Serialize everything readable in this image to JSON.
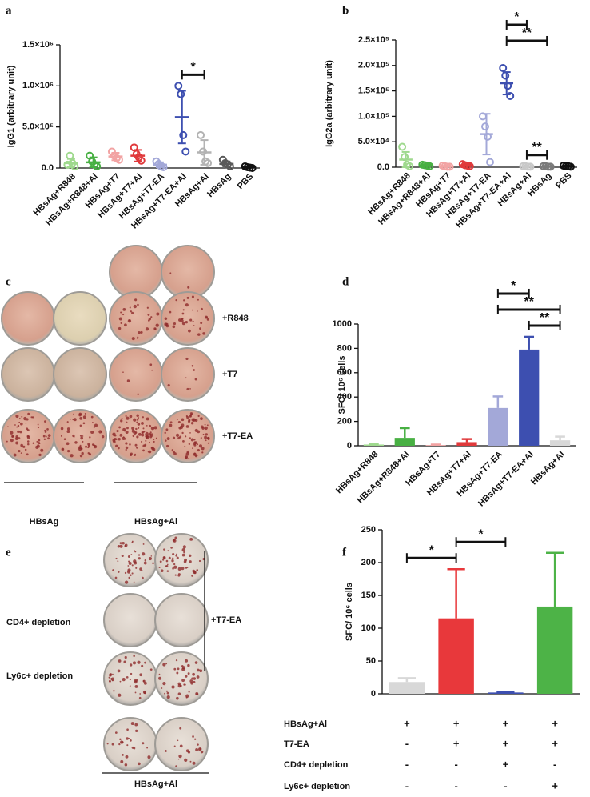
{
  "chart_data": [
    {
      "type": "dot",
      "panel": "a",
      "ylabel": "IgG1 (arbitrary unit)",
      "categories": [
        "HBsAg+R848",
        "HBsAg+R848+Al",
        "HBsAg+T7",
        "HBsAg+T7+Al",
        "HBsAg+T7-EA",
        "HBsAg+T7-EA+Al",
        "HBsAg+Al",
        "HBsAg",
        "PBS"
      ],
      "colors": [
        "#9fd98e",
        "#48b043",
        "#f2a3a3",
        "#e0393b",
        "#a3a8d8",
        "#3d4fb0",
        "#b3b3b3",
        "#5a5a5a",
        "#111111"
      ],
      "values": [
        60000,
        70000,
        140000,
        150000,
        40000,
        620000,
        190000,
        50000,
        10000
      ],
      "errors": [
        50000,
        60000,
        45000,
        70000,
        30000,
        320000,
        150000,
        30000,
        8000
      ],
      "points": [
        [
          40000,
          150000,
          60000,
          20000
        ],
        [
          150000,
          80000,
          40000,
          20000
        ],
        [
          200000,
          150000,
          120000,
          100000
        ],
        [
          250000,
          170000,
          130000,
          90000
        ],
        [
          80000,
          50000,
          20000,
          10000
        ],
        [
          1000000,
          900000,
          400000,
          200000
        ],
        [
          400000,
          200000,
          80000,
          60000
        ],
        [
          100000,
          60000,
          40000,
          20000
        ],
        [
          20000,
          10000,
          5000,
          0
        ]
      ],
      "ylim": [
        0,
        1500000
      ],
      "yticks": [
        {
          "value": 0,
          "label": "0.0"
        },
        {
          "value": 500000,
          "label": "5.0×10⁵"
        },
        {
          "value": 1000000,
          "label": "1.0×10⁶"
        },
        {
          "value": 1500000,
          "label": "1.5×10⁶"
        }
      ],
      "significance": [
        {
          "from": 5,
          "to": 6,
          "label": "*"
        }
      ]
    },
    {
      "type": "dot",
      "panel": "b",
      "ylabel": "IgG2a (arbitrary unit)",
      "categories": [
        "HBsAg+R848",
        "HBsAg+R848+Al",
        "HBsAg+T7",
        "HBsAg+T7+Al",
        "HBsAg+T7-EA",
        "HBsAg+T7-EA+Al",
        "HBsAg+Al",
        "HBsAg",
        "PBS"
      ],
      "colors": [
        "#9fd98e",
        "#48b043",
        "#f2a3a3",
        "#e0393b",
        "#a3a8d8",
        "#3d4fb0",
        "#c8c8c8",
        "#7a7a7a",
        "#111111"
      ],
      "values": [
        15000,
        4000,
        2000,
        4000,
        65000,
        165000,
        1500,
        1500,
        2000
      ],
      "errors": [
        15000,
        2000,
        1000,
        2000,
        40000,
        22000,
        500,
        500,
        1000
      ],
      "points": [
        [
          40000,
          20000,
          5000,
          2000
        ],
        [
          5000,
          4000,
          3000,
          2000
        ],
        [
          3000,
          2000,
          1000,
          1000
        ],
        [
          6000,
          4000,
          3000,
          2000
        ],
        [
          100000,
          80000,
          60000,
          10000
        ],
        [
          195000,
          180000,
          160000,
          140000
        ],
        [
          2000,
          2000,
          1000,
          1000
        ],
        [
          2000,
          2000,
          1000,
          1000
        ],
        [
          3000,
          2000,
          2000,
          1000
        ]
      ],
      "ylim": [
        0,
        250000
      ],
      "yticks": [
        {
          "value": 0,
          "label": "0.0"
        },
        {
          "value": 50000,
          "label": "5.0×10⁴"
        },
        {
          "value": 100000,
          "label": "1.0×10⁵"
        },
        {
          "value": 150000,
          "label": "1.5×10⁵"
        },
        {
          "value": 200000,
          "label": "2.0×10⁵"
        },
        {
          "value": 250000,
          "label": "2.5×10⁵"
        }
      ],
      "significance": [
        {
          "from": 5,
          "to": 6,
          "label": "*"
        },
        {
          "from": 5,
          "to": 7,
          "label": "**"
        },
        {
          "from": 6,
          "to": 7,
          "label": "**"
        }
      ]
    },
    {
      "type": "bar",
      "panel": "d",
      "ylabel": "SFC/ 10⁶ cells",
      "categories": [
        "HBsAg+R848",
        "HBsAg+R848+Al",
        "HBsAg+T7",
        "HBsAg+T7+Al",
        "HBsAg+T7-EA",
        "HBsAg+T7-EA+Al",
        "HBsAg+Al"
      ],
      "colors": [
        "#9fd98e",
        "#48b043",
        "#f2a3a3",
        "#e0393b",
        "#a3a8d8",
        "#3d4fb0",
        "#d8d8d8"
      ],
      "values": [
        10,
        65,
        5,
        30,
        310,
        790,
        45
      ],
      "errors": [
        5,
        80,
        5,
        25,
        95,
        105,
        30
      ],
      "ylim": [
        0,
        1000
      ],
      "yticks": [
        0,
        200,
        400,
        600,
        800,
        1000
      ],
      "significance": [
        {
          "from": 4,
          "to": 5,
          "label": "*"
        },
        {
          "from": 4,
          "to": 6,
          "label": "**"
        },
        {
          "from": 5,
          "to": 6,
          "label": "**"
        }
      ]
    },
    {
      "type": "bar",
      "panel": "f",
      "ylabel": "SFC/ 10⁶ cells",
      "colors": [
        "#d8d8d8",
        "#e8383b",
        "#3d4fb0",
        "#4db347"
      ],
      "values": [
        18,
        115,
        2,
        133
      ],
      "errors": [
        6,
        75,
        1,
        82
      ],
      "ylim": [
        0,
        250
      ],
      "yticks": [
        0,
        50,
        100,
        150,
        200,
        250
      ],
      "significance": [
        {
          "from": 1,
          "to": 2,
          "label": "*"
        },
        {
          "from": 0,
          "to": 1,
          "label": "*"
        }
      ],
      "conditions": [
        {
          "label": "HBsAg+Al",
          "marks": [
            "+",
            "+",
            "+",
            "+"
          ]
        },
        {
          "label": "T7-EA",
          "marks": [
            "-",
            "+",
            "+",
            "+"
          ]
        },
        {
          "label": "CD4+ depletion",
          "marks": [
            "-",
            "-",
            "+",
            "-"
          ]
        },
        {
          "label": "Ly6c+ depletion",
          "marks": [
            "-",
            "-",
            "-",
            "+"
          ]
        }
      ]
    }
  ],
  "photo_panels": [
    {
      "panel": "c",
      "row_labels": [
        "+R848",
        "+T7",
        "+T7-EA"
      ],
      "group_labels": [
        "HBsAg",
        "HBsAg+Al"
      ]
    },
    {
      "panel": "e",
      "row_labels": [
        "CD4+ depletion",
        "Ly6c+ depletion"
      ],
      "side_label": "+T7-EA",
      "group_label": "HBsAg+Al"
    }
  ]
}
